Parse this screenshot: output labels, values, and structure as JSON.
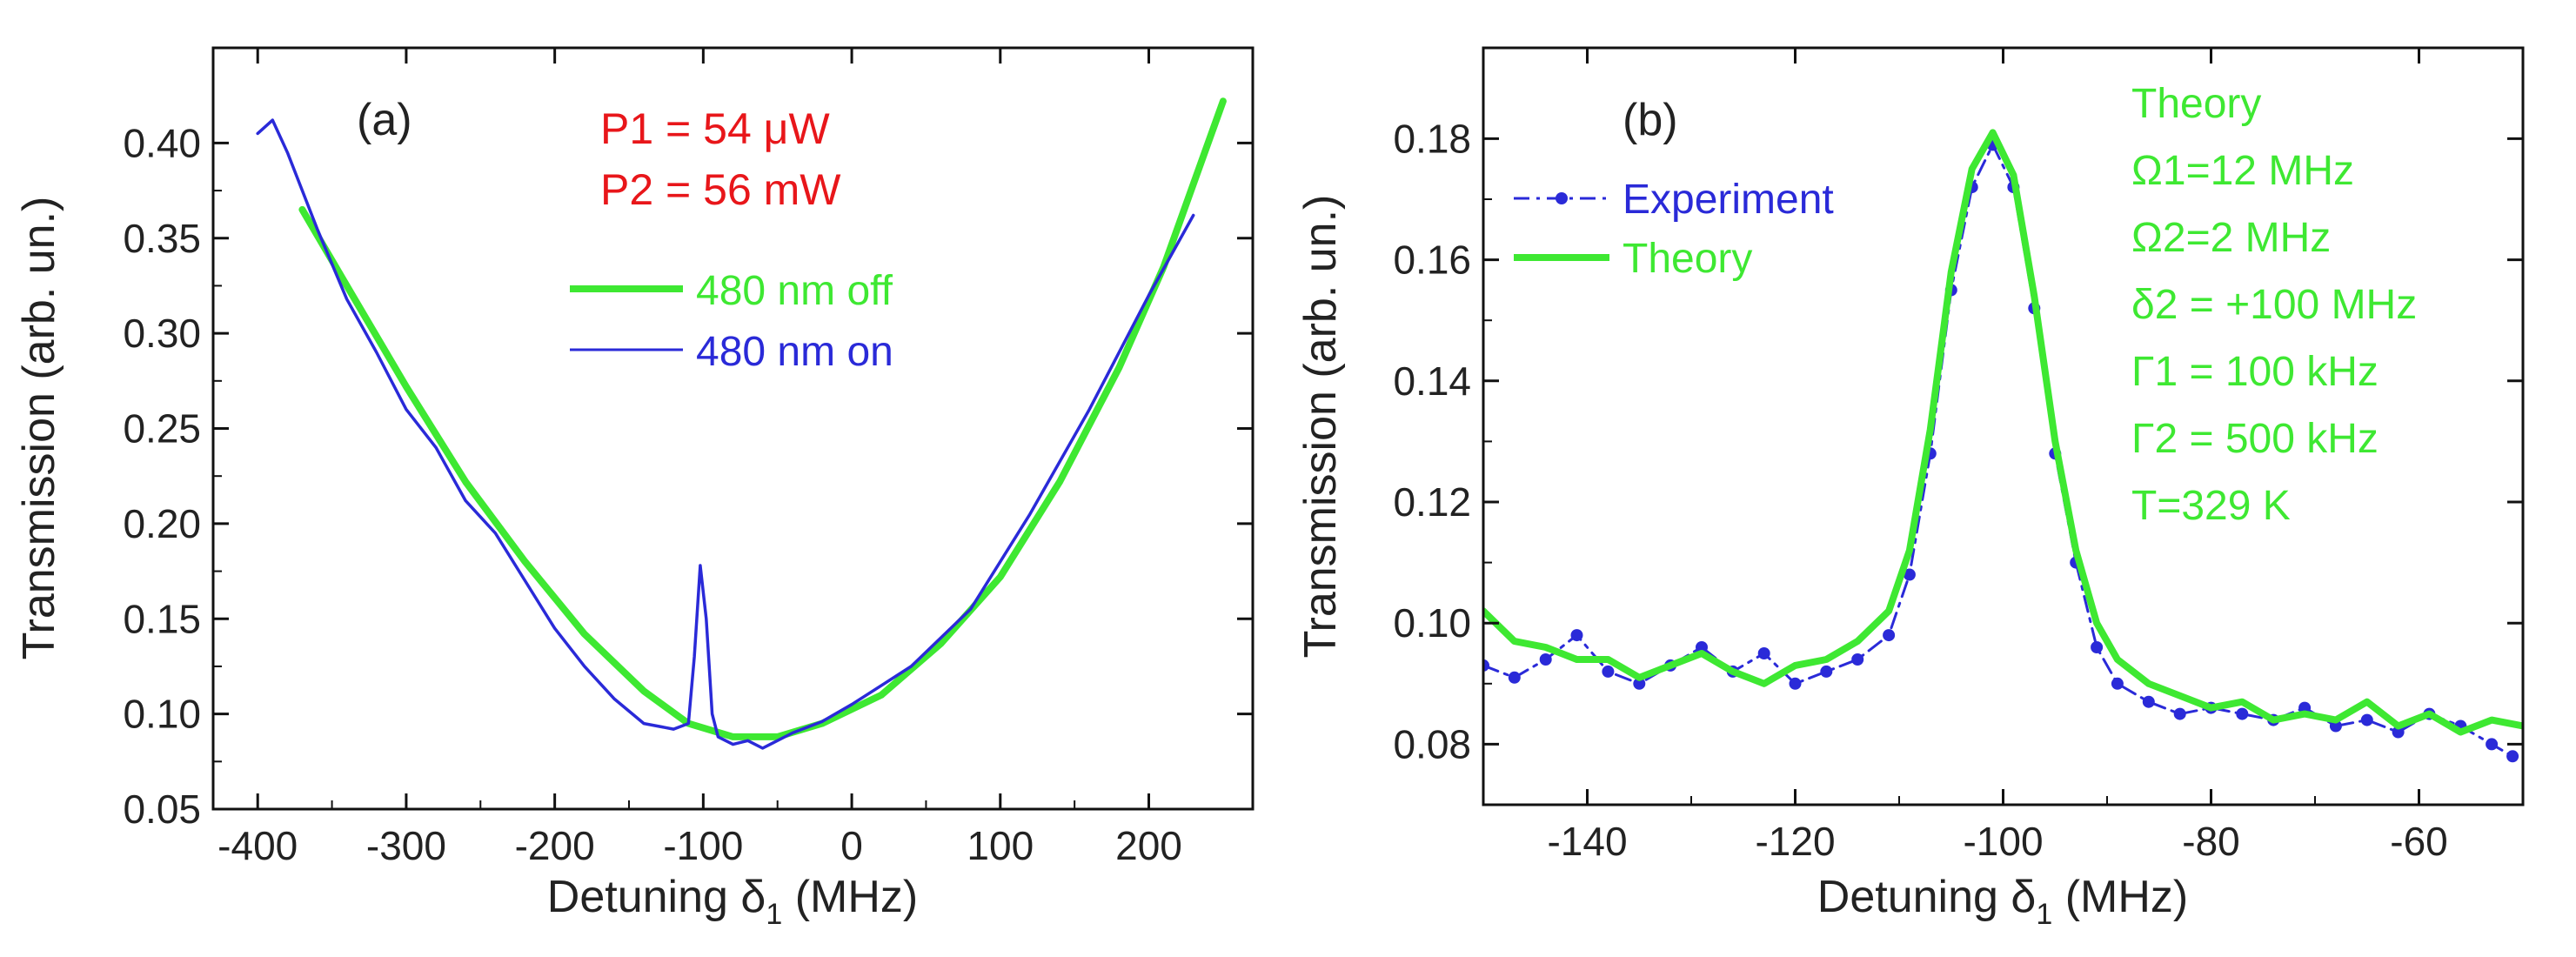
{
  "chart_data": [
    {
      "panel": "(a)",
      "type": "line",
      "xlabel": "Detuning δ",
      "xlabel_sub": "1",
      "xlabel_unit": " (MHz)",
      "ylabel": "Transmission (arb. un.)",
      "xlim": [
        -430,
        270
      ],
      "ylim": [
        0.05,
        0.45
      ],
      "xticks": [
        -400,
        -300,
        -200,
        -100,
        0,
        100,
        200
      ],
      "xtick_labels": [
        "-400",
        "-300",
        "-200",
        "-100",
        "0",
        "100",
        "200"
      ],
      "yticks": [
        0.05,
        0.1,
        0.15,
        0.2,
        0.25,
        0.3,
        0.35,
        0.4
      ],
      "ytick_labels": [
        "0.05",
        "0.10",
        "0.15",
        "0.20",
        "0.25",
        "0.30",
        "0.35",
        "0.40"
      ],
      "annotations": [
        "P1 = 54 μW",
        "P2 = 56 mW"
      ],
      "series": [
        {
          "name": "480 nm off",
          "color": "#3ee832",
          "style": "thick-line",
          "x": [
            -370,
            -340,
            -300,
            -260,
            -220,
            -180,
            -140,
            -110,
            -80,
            -50,
            -20,
            20,
            60,
            100,
            140,
            180,
            210,
            250
          ],
          "y": [
            0.365,
            0.325,
            0.272,
            0.222,
            0.18,
            0.142,
            0.112,
            0.095,
            0.088,
            0.088,
            0.095,
            0.11,
            0.137,
            0.172,
            0.222,
            0.282,
            0.335,
            0.422
          ]
        },
        {
          "name": "480 nm on",
          "color": "#2a2ad8",
          "style": "thin-line",
          "x": [
            -400,
            -390,
            -380,
            -360,
            -340,
            -320,
            -300,
            -280,
            -260,
            -240,
            -220,
            -200,
            -180,
            -160,
            -140,
            -120,
            -110,
            -106,
            -102,
            -98,
            -94,
            -90,
            -80,
            -70,
            -60,
            -40,
            -20,
            0,
            40,
            80,
            120,
            160,
            200,
            230
          ],
          "y": [
            0.405,
            0.412,
            0.395,
            0.355,
            0.318,
            0.29,
            0.26,
            0.24,
            0.212,
            0.195,
            0.17,
            0.145,
            0.125,
            0.108,
            0.095,
            0.092,
            0.095,
            0.13,
            0.178,
            0.15,
            0.1,
            0.088,
            0.084,
            0.086,
            0.082,
            0.09,
            0.096,
            0.105,
            0.125,
            0.155,
            0.205,
            0.26,
            0.32,
            0.362
          ]
        }
      ]
    },
    {
      "panel": "(b)",
      "type": "line",
      "xlabel": "Detuning δ",
      "xlabel_sub": "1",
      "xlabel_unit": " (MHz)",
      "ylabel": "Transmission (arb. un.)",
      "xlim": [
        -150,
        -50
      ],
      "ylim": [
        0.07,
        0.195
      ],
      "xticks": [
        -140,
        -120,
        -100,
        -80,
        -60
      ],
      "xtick_labels": [
        "-140",
        "-120",
        "-100",
        "-80",
        "-60"
      ],
      "yticks": [
        0.08,
        0.1,
        0.12,
        0.14,
        0.16,
        0.18
      ],
      "ytick_labels": [
        "0.08",
        "0.10",
        "0.12",
        "0.14",
        "0.16",
        "0.18"
      ],
      "annotations": [
        "Theory",
        "Ω1=12 MHz",
        "Ω2=2 MHz",
        "δ2 = +100 MHz",
        "Γ1 = 100 kHz",
        "Γ2 = 500 kHz",
        "T=329 K"
      ],
      "series": [
        {
          "name": "Experiment",
          "color": "#2a2ad8",
          "style": "dash-dot-markers",
          "x": [
            -150,
            -147,
            -144,
            -141,
            -138,
            -135,
            -132,
            -129,
            -126,
            -123,
            -120,
            -117,
            -114,
            -111,
            -109,
            -107,
            -105,
            -103,
            -101,
            -99,
            -97,
            -95,
            -93,
            -91,
            -89,
            -86,
            -83,
            -80,
            -77,
            -74,
            -71,
            -68,
            -65,
            -62,
            -59,
            -56,
            -53,
            -51
          ],
          "y": [
            0.093,
            0.091,
            0.094,
            0.098,
            0.092,
            0.09,
            0.093,
            0.096,
            0.092,
            0.095,
            0.09,
            0.092,
            0.094,
            0.098,
            0.108,
            0.128,
            0.155,
            0.172,
            0.179,
            0.172,
            0.152,
            0.128,
            0.11,
            0.096,
            0.09,
            0.087,
            0.085,
            0.086,
            0.085,
            0.084,
            0.086,
            0.083,
            0.084,
            0.082,
            0.085,
            0.083,
            0.08,
            0.078
          ]
        },
        {
          "name": "Theory",
          "color": "#3ee832",
          "style": "thick-line",
          "x": [
            -150,
            -147,
            -144,
            -141,
            -138,
            -135,
            -132,
            -129,
            -126,
            -123,
            -120,
            -117,
            -114,
            -111,
            -109,
            -107,
            -105,
            -103,
            -101,
            -99,
            -97,
            -95,
            -93,
            -91,
            -89,
            -86,
            -83,
            -80,
            -77,
            -74,
            -71,
            -68,
            -65,
            -62,
            -59,
            -56,
            -53,
            -50
          ],
          "y": [
            0.102,
            0.097,
            0.096,
            0.094,
            0.094,
            0.091,
            0.093,
            0.095,
            0.092,
            0.09,
            0.093,
            0.094,
            0.097,
            0.102,
            0.112,
            0.132,
            0.158,
            0.175,
            0.181,
            0.174,
            0.154,
            0.13,
            0.112,
            0.1,
            0.094,
            0.09,
            0.088,
            0.086,
            0.087,
            0.084,
            0.085,
            0.084,
            0.087,
            0.083,
            0.085,
            0.082,
            0.084,
            0.083
          ]
        }
      ]
    }
  ]
}
